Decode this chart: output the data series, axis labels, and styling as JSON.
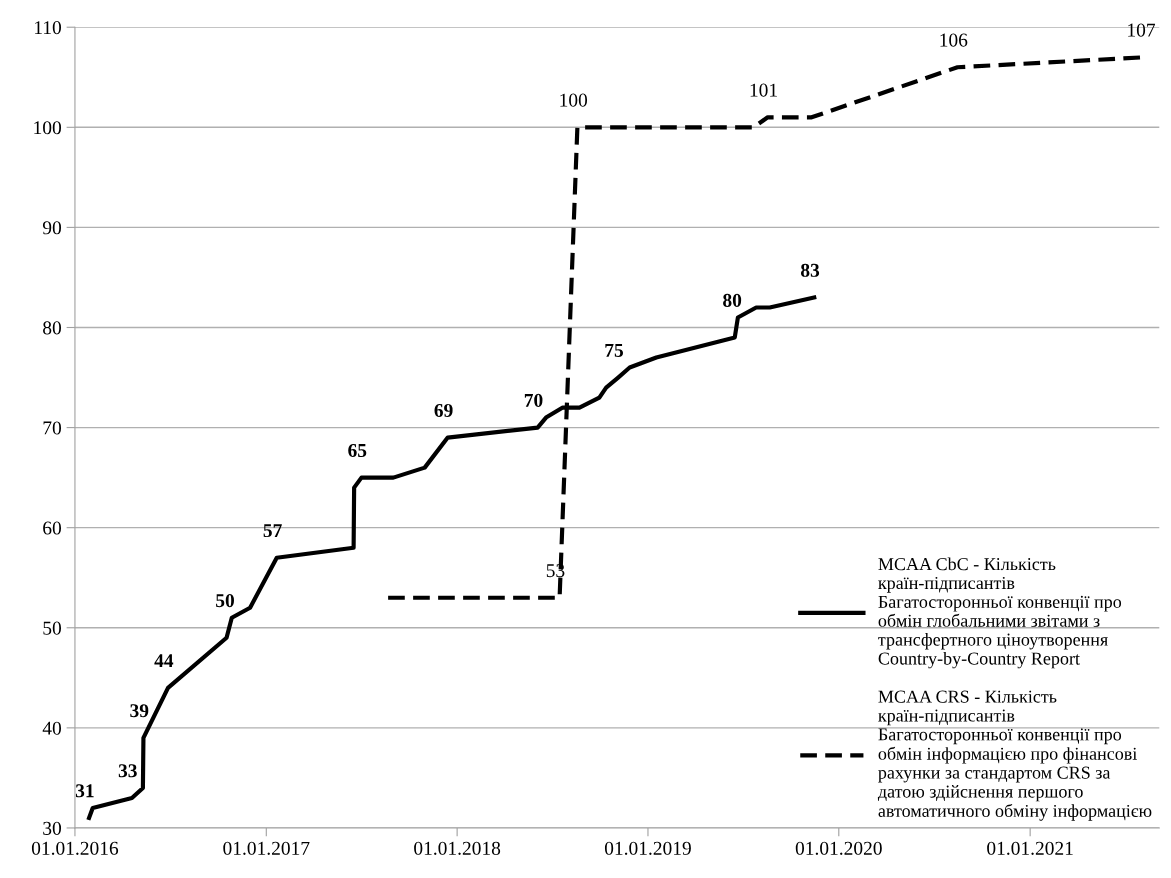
{
  "chart_data": {
    "type": "line",
    "xlim": [
      "2016-01-01",
      "2021-09-05"
    ],
    "ylim": [
      30,
      110
    ],
    "xticks": [
      {
        "value": "2016-01-01",
        "label": "01.01.2016"
      },
      {
        "value": "2017-01-01",
        "label": "01.01.2017"
      },
      {
        "value": "2018-01-01",
        "label": "01.01.2018"
      },
      {
        "value": "2019-01-01",
        "label": "01.01.2019"
      },
      {
        "value": "2020-01-01",
        "label": "01.01.2020"
      },
      {
        "value": "2021-01-01",
        "label": "01.01.2021"
      }
    ],
    "yticks": [
      30,
      40,
      50,
      60,
      70,
      80,
      90,
      100,
      110
    ],
    "grid": "y",
    "legend": "bottom right",
    "marker": "none",
    "series": [
      {
        "name": "MCAA CbC - Кількість країн-підписантів Багатосторонньої конвенції про обмін глобальними звітами з трансфертного ціноутворення Country-by-Country Report",
        "color": "#000000",
        "line_style": "solid",
        "x": [
          "2016-01-28",
          "2016-02-04",
          "2016-04-19",
          "2016-05-10",
          "2016-05-11",
          "2016-06-27",
          "2016-10-17",
          "2016-10-22",
          "2016-10-27",
          "2016-12-01",
          "2017-01-21",
          "2017-06-17",
          "2017-06-18",
          "2017-07-02",
          "2017-09-01",
          "2017-10-31",
          "2017-12-14",
          "2018-06-04",
          "2018-06-20",
          "2018-07-22",
          "2018-08-23",
          "2018-09-30",
          "2018-10-13",
          "2018-11-05",
          "2018-11-27",
          "2019-01-17",
          "2019-06-16",
          "2019-06-19",
          "2019-06-22",
          "2019-07-27",
          "2019-08-22",
          "2019-11-15"
        ],
        "values": [
          31,
          32,
          33,
          34,
          39,
          44,
          49,
          50,
          51,
          52,
          57,
          58,
          64,
          65,
          65,
          66,
          69,
          70,
          71,
          72,
          72,
          73,
          74,
          75,
          76,
          77,
          79,
          80,
          81,
          82,
          82,
          83
        ],
        "value_labels": [
          "31",
          null,
          "33",
          null,
          "39",
          "44",
          null,
          "50",
          null,
          null,
          "57",
          null,
          null,
          "65",
          null,
          null,
          "69",
          "70",
          null,
          null,
          null,
          null,
          null,
          "75",
          null,
          null,
          null,
          "80",
          null,
          null,
          null,
          "83"
        ]
      },
      {
        "name": "MCAA CRS - Кількість країн-підписантів Багатосторонньої конвенції про обмін інформацією про фінансові рахунки за стандартом CRS за датою здійснення першого автоматичного обміну інформацією",
        "color": "#000000",
        "line_style": "dashed",
        "x": [
          "2017-08-22",
          "2018-07-16",
          "2018-08-19",
          "2019-07-22",
          "2019-08-18",
          "2019-11-10",
          "2020-08-15",
          "2021-08-09"
        ],
        "values": [
          53,
          53,
          100,
          100,
          101,
          101,
          106,
          107
        ],
        "value_labels": [
          null,
          "53",
          "100",
          null,
          "101",
          null,
          "106",
          "107"
        ]
      }
    ]
  }
}
